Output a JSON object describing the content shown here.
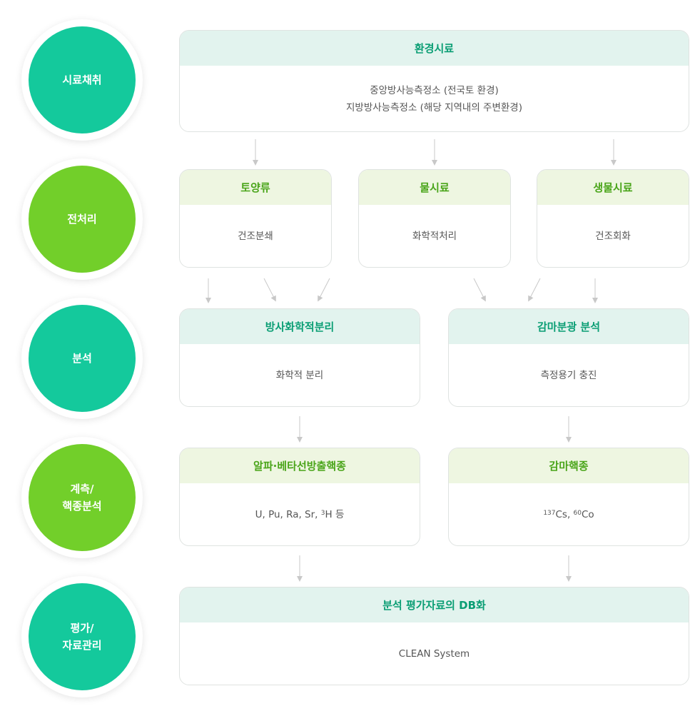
{
  "steps": [
    {
      "label": "시료채취",
      "color": "teal"
    },
    {
      "label": "전처리",
      "color": "lime"
    },
    {
      "label": "분석",
      "color": "teal"
    },
    {
      "label": "계측/\n핵종분석",
      "color": "lime"
    },
    {
      "label": "평가/\n자료관리",
      "color": "teal"
    }
  ],
  "sampling": {
    "title": "환경시료",
    "line1": "중앙방사능측정소 (전국토 환경)",
    "line2": "지방방사능측정소 (해당 지역내의 주변환경)"
  },
  "pretreatment": [
    {
      "title": "토양류",
      "body": "건조분쇄"
    },
    {
      "title": "물시료",
      "body": "화학적처리"
    },
    {
      "title": "생물시료",
      "body": "건조회화"
    }
  ],
  "analysis": [
    {
      "title": "방사화학적분리",
      "body": "화학적 분리"
    },
    {
      "title": "감마분광 분석",
      "body": "측정용기 충진"
    }
  ],
  "measurement": {
    "alpha_beta": {
      "title": "알파·베타선방출핵종",
      "body_prefix": "U, Pu, Ra, Sr, ",
      "body_sup": "3",
      "body_suffix": "H 등"
    },
    "gamma": {
      "title": "감마핵종",
      "sup1": "137",
      "text1": "Cs, ",
      "sup2": "60",
      "text2": "Co"
    }
  },
  "evaluation": {
    "title": "분석 평가자료의 DB화",
    "body": "CLEAN System"
  },
  "colors": {
    "teal": "#14c99c",
    "lime": "#72cf2a",
    "teal_header_bg": "#e2f3ee",
    "lime_header_bg": "#eef6e1",
    "teal_text": "#0a9e74",
    "lime_text": "#4aa51a",
    "arrow": "#c8c8c8"
  }
}
